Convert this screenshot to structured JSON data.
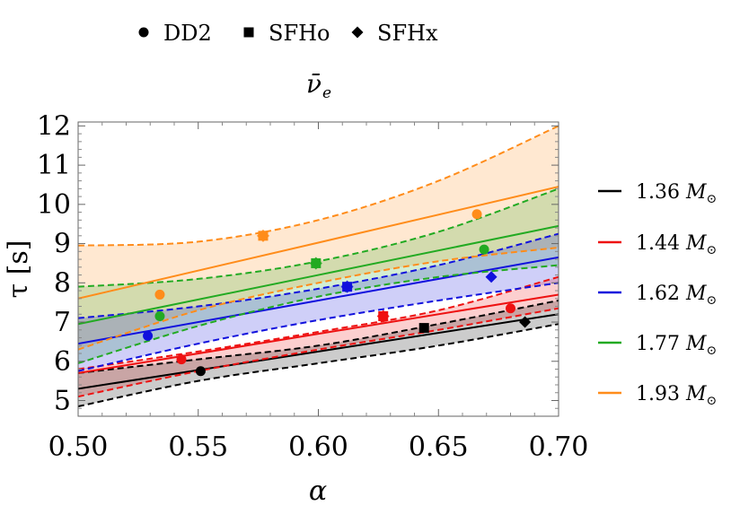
{
  "chart_data": {
    "type": "line",
    "title": "ν̄",
    "title_sub": "e",
    "xlabel": "α",
    "ylabel": "τ [s]",
    "xlim": [
      0.5,
      0.7
    ],
    "ylim": [
      4.6,
      12.1
    ],
    "x_ticks": [
      {
        "v": 0.5,
        "label": "0.50"
      },
      {
        "v": 0.55,
        "label": "0.55"
      },
      {
        "v": 0.6,
        "label": "0.60"
      },
      {
        "v": 0.65,
        "label": "0.65"
      },
      {
        "v": 0.7,
        "label": "0.70"
      }
    ],
    "y_ticks": [
      {
        "v": 5,
        "label": "5"
      },
      {
        "v": 6,
        "label": "6"
      },
      {
        "v": 7,
        "label": "7"
      },
      {
        "v": 8,
        "label": "8"
      },
      {
        "v": 9,
        "label": "9"
      },
      {
        "v": 10,
        "label": "10"
      },
      {
        "v": 11,
        "label": "11"
      },
      {
        "v": 12,
        "label": "12"
      }
    ],
    "eos_legend": [
      {
        "label": "DD2",
        "marker": "circle"
      },
      {
        "label": "SFHo",
        "marker": "square"
      },
      {
        "label": "SFHx",
        "marker": "diamond"
      }
    ],
    "series": [
      {
        "mass": "1.36",
        "unit": "M",
        "color": "#000000",
        "central": [
          [
            0.5,
            5.3
          ],
          [
            0.7,
            7.2
          ]
        ],
        "lower": [
          [
            0.5,
            4.85
          ],
          [
            0.55,
            5.5
          ],
          [
            0.6,
            5.95
          ],
          [
            0.65,
            6.4
          ],
          [
            0.7,
            6.95
          ]
        ],
        "upper": [
          [
            0.5,
            5.7
          ],
          [
            0.55,
            6.05
          ],
          [
            0.6,
            6.4
          ],
          [
            0.65,
            6.95
          ],
          [
            0.7,
            7.55
          ]
        ],
        "points": [
          {
            "x": 0.551,
            "y": 5.75,
            "marker": "circle"
          },
          {
            "x": 0.644,
            "y": 6.85,
            "marker": "square"
          },
          {
            "x": 0.686,
            "y": 7.0,
            "marker": "diamond"
          }
        ]
      },
      {
        "mass": "1.44",
        "unit": "M",
        "color": "#ee1111",
        "central": [
          [
            0.5,
            5.7
          ],
          [
            0.7,
            7.7
          ]
        ],
        "lower": [
          [
            0.5,
            5.1
          ],
          [
            0.55,
            5.75
          ],
          [
            0.6,
            6.3
          ],
          [
            0.65,
            6.8
          ],
          [
            0.7,
            7.35
          ]
        ],
        "upper": [
          [
            0.5,
            5.8
          ],
          [
            0.55,
            6.25
          ],
          [
            0.6,
            6.75
          ],
          [
            0.65,
            7.3
          ],
          [
            0.7,
            8.15
          ]
        ],
        "points": [
          {
            "x": 0.543,
            "y": 6.05,
            "marker": "circle"
          },
          {
            "x": 0.627,
            "y": 7.15,
            "marker": "cross"
          },
          {
            "x": 0.68,
            "y": 7.35,
            "marker": "circle"
          }
        ]
      },
      {
        "mass": "1.62",
        "unit": "M",
        "color": "#1111dd",
        "central": [
          [
            0.5,
            6.45
          ],
          [
            0.7,
            8.65
          ]
        ],
        "lower": [
          [
            0.5,
            5.75
          ],
          [
            0.55,
            6.45
          ],
          [
            0.6,
            7.05
          ],
          [
            0.65,
            7.55
          ],
          [
            0.7,
            8.0
          ]
        ],
        "upper": [
          [
            0.5,
            7.1
          ],
          [
            0.55,
            7.4
          ],
          [
            0.6,
            7.85
          ],
          [
            0.65,
            8.45
          ],
          [
            0.7,
            9.25
          ]
        ],
        "points": [
          {
            "x": 0.529,
            "y": 6.65,
            "marker": "circle"
          },
          {
            "x": 0.612,
            "y": 7.9,
            "marker": "cross"
          },
          {
            "x": 0.672,
            "y": 8.15,
            "marker": "diamond"
          }
        ]
      },
      {
        "mass": "1.77",
        "unit": "M",
        "color": "#22aa22",
        "central": [
          [
            0.5,
            6.95
          ],
          [
            0.7,
            9.45
          ]
        ],
        "lower": [
          [
            0.5,
            5.95
          ],
          [
            0.55,
            6.9
          ],
          [
            0.6,
            7.65
          ],
          [
            0.65,
            8.15
          ],
          [
            0.7,
            8.45
          ]
        ],
        "upper": [
          [
            0.5,
            7.9
          ],
          [
            0.55,
            8.1
          ],
          [
            0.6,
            8.55
          ],
          [
            0.65,
            9.3
          ],
          [
            0.7,
            10.4
          ]
        ],
        "points": [
          {
            "x": 0.534,
            "y": 7.15,
            "marker": "circle"
          },
          {
            "x": 0.599,
            "y": 8.5,
            "marker": "cross"
          },
          {
            "x": 0.669,
            "y": 8.85,
            "marker": "circle"
          }
        ]
      },
      {
        "mass": "1.93",
        "unit": "M",
        "color": "#ff8c1a",
        "central": [
          [
            0.5,
            7.6
          ],
          [
            0.7,
            10.45
          ]
        ],
        "lower": [
          [
            0.5,
            6.3
          ],
          [
            0.55,
            7.3
          ],
          [
            0.6,
            8.0
          ],
          [
            0.65,
            8.55
          ],
          [
            0.7,
            8.9
          ]
        ],
        "upper": [
          [
            0.5,
            8.95
          ],
          [
            0.55,
            9.05
          ],
          [
            0.6,
            9.6
          ],
          [
            0.65,
            10.6
          ],
          [
            0.7,
            12.0
          ]
        ],
        "points": [
          {
            "x": 0.534,
            "y": 7.7,
            "marker": "circle"
          },
          {
            "x": 0.577,
            "y": 9.2,
            "marker": "cross"
          },
          {
            "x": 0.666,
            "y": 9.75,
            "marker": "circle"
          }
        ]
      }
    ],
    "legend_position": "right",
    "grid": false
  }
}
